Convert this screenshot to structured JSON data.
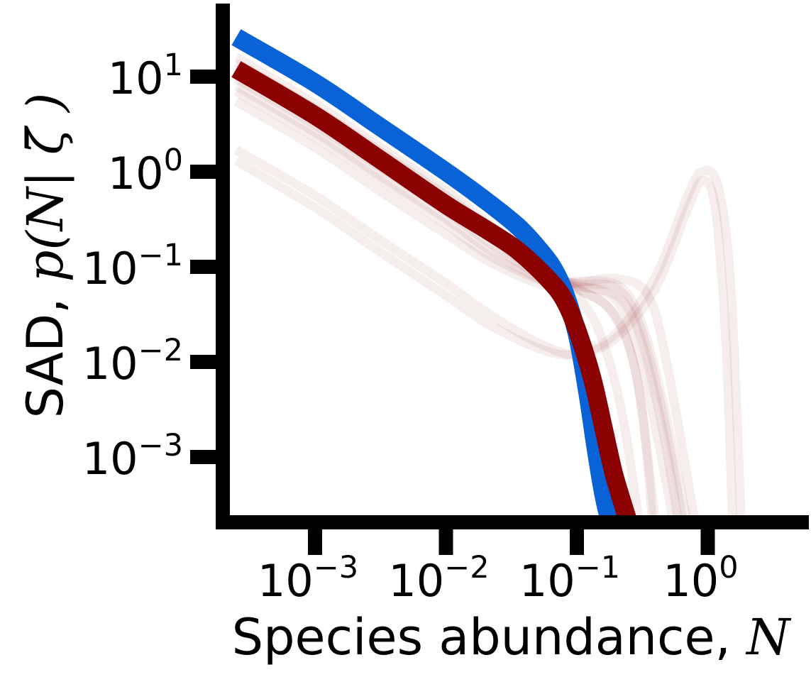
{
  "chart_data": {
    "type": "line",
    "xscale": "log",
    "yscale": "log",
    "xlim": [
      0.00025,
      6
    ],
    "ylim": [
      0.0002,
      50
    ],
    "xlabel": {
      "text": "Species abundance, ",
      "symbol": "N"
    },
    "ylabel": {
      "text": "SAD, ",
      "symbol": "p(N| ζ̄ )"
    },
    "x_ticks": [
      {
        "value": 0.001,
        "base": "10",
        "exp": "−3"
      },
      {
        "value": 0.01,
        "base": "10",
        "exp": "−2"
      },
      {
        "value": 0.1,
        "base": "10",
        "exp": "−1"
      },
      {
        "value": 1,
        "base": "10",
        "exp": "0"
      }
    ],
    "y_ticks": [
      {
        "value": 10,
        "base": "10",
        "exp": "1"
      },
      {
        "value": 1,
        "base": "10",
        "exp": "0"
      },
      {
        "value": 0.1,
        "base": "10",
        "exp": "−1"
      },
      {
        "value": 0.01,
        "base": "10",
        "exp": "−2"
      },
      {
        "value": 0.001,
        "base": "10",
        "exp": "−3"
      }
    ],
    "grid": false,
    "legend": "none",
    "series": [
      {
        "role": "background",
        "color": "#8b1a1a",
        "opacity": 0.08,
        "x": [
          0.00025,
          0.001,
          0.003,
          0.01,
          0.02,
          0.05,
          0.1,
          0.2,
          0.4,
          0.7,
          0.9,
          1.1,
          1.25,
          1.4,
          1.55
        ],
        "y": [
          1.7,
          0.56,
          0.2,
          0.067,
          0.034,
          0.016,
          0.012,
          0.018,
          0.06,
          0.4,
          0.8,
          0.55,
          0.12,
          0.01,
          0.0002
        ]
      },
      {
        "role": "background",
        "color": "#8b1a1a",
        "opacity": 0.08,
        "x": [
          0.00025,
          0.001,
          0.003,
          0.01,
          0.02,
          0.05,
          0.1,
          0.2,
          0.4,
          0.7,
          0.9,
          1.2,
          1.5,
          1.8
        ],
        "y": [
          1.3,
          0.42,
          0.15,
          0.05,
          0.026,
          0.014,
          0.012,
          0.02,
          0.08,
          0.55,
          1.0,
          0.7,
          0.06,
          0.0002
        ]
      },
      {
        "role": "background",
        "color": "#8b1a1a",
        "opacity": 0.08,
        "x": [
          0.00025,
          0.001,
          0.003,
          0.01,
          0.02,
          0.04,
          0.06,
          0.1,
          0.2,
          0.3,
          0.45,
          0.6
        ],
        "y": [
          8.0,
          2.6,
          0.95,
          0.32,
          0.16,
          0.09,
          0.07,
          0.062,
          0.05,
          0.02,
          0.002,
          0.0002
        ]
      },
      {
        "role": "background",
        "color": "#8b1a1a",
        "opacity": 0.08,
        "x": [
          0.00025,
          0.001,
          0.003,
          0.01,
          0.02,
          0.04,
          0.06,
          0.1,
          0.2,
          0.3,
          0.45,
          0.7
        ],
        "y": [
          5.5,
          1.8,
          0.65,
          0.22,
          0.12,
          0.075,
          0.065,
          0.07,
          0.065,
          0.03,
          0.004,
          0.0002
        ]
      },
      {
        "role": "background",
        "color": "#8b1a1a",
        "opacity": 0.08,
        "x": [
          0.00025,
          0.001,
          0.003,
          0.01,
          0.02,
          0.04,
          0.06,
          0.1,
          0.2,
          0.3,
          0.4,
          0.55
        ],
        "y": [
          11.0,
          3.6,
          1.3,
          0.44,
          0.22,
          0.11,
          0.08,
          0.065,
          0.045,
          0.012,
          0.002,
          0.0002
        ]
      },
      {
        "role": "background",
        "color": "#8b1a1a",
        "opacity": 0.08,
        "x": [
          0.00025,
          0.001,
          0.003,
          0.01,
          0.02,
          0.04,
          0.06,
          0.1,
          0.2,
          0.3,
          0.38
        ],
        "y": [
          14.0,
          4.6,
          1.7,
          0.56,
          0.27,
          0.13,
          0.085,
          0.06,
          0.03,
          0.005,
          0.0002
        ]
      },
      {
        "role": "background",
        "color": "#8b1a1a",
        "opacity": 0.08,
        "x": [
          0.00025,
          0.001,
          0.003,
          0.01,
          0.02,
          0.04,
          0.06,
          0.1,
          0.15,
          0.22,
          0.3
        ],
        "y": [
          16.0,
          5.2,
          1.9,
          0.63,
          0.3,
          0.14,
          0.085,
          0.05,
          0.02,
          0.003,
          0.0002
        ]
      },
      {
        "role": "background",
        "color": "#8b1a1a",
        "opacity": 0.08,
        "x": [
          0.00025,
          0.001,
          0.003,
          0.01,
          0.02,
          0.04,
          0.06,
          0.1,
          0.2,
          0.35,
          0.5,
          0.8
        ],
        "y": [
          7.0,
          2.3,
          0.85,
          0.28,
          0.14,
          0.085,
          0.07,
          0.068,
          0.075,
          0.05,
          0.008,
          0.0002
        ]
      },
      {
        "role": "background",
        "color": "#8b1a1a",
        "opacity": 0.08,
        "x": [
          0.00025,
          0.001,
          0.003,
          0.01,
          0.02,
          0.04,
          0.06,
          0.1,
          0.18,
          0.28,
          0.4
        ],
        "y": [
          12.5,
          4.1,
          1.5,
          0.5,
          0.25,
          0.12,
          0.082,
          0.058,
          0.035,
          0.008,
          0.0002
        ]
      },
      {
        "role": "background",
        "color": "#8b1a1a",
        "opacity": 0.08,
        "x": [
          0.00025,
          0.001,
          0.003,
          0.01,
          0.02,
          0.04,
          0.06,
          0.1,
          0.2,
          0.3,
          0.45,
          0.65
        ],
        "y": [
          9.5,
          3.1,
          1.15,
          0.38,
          0.19,
          0.1,
          0.075,
          0.066,
          0.06,
          0.025,
          0.003,
          0.0002
        ]
      },
      {
        "role": "blue",
        "color": "#0a63d6",
        "opacity": 1,
        "width": 26,
        "x": [
          0.00025,
          0.001,
          0.003,
          0.01,
          0.02,
          0.035,
          0.05,
          0.065,
          0.08,
          0.1,
          0.12,
          0.14,
          0.16,
          0.18
        ],
        "y": [
          26.0,
          8.6,
          3.1,
          1.0,
          0.5,
          0.27,
          0.16,
          0.1,
          0.055,
          0.02,
          0.005,
          0.0012,
          0.0004,
          0.0002
        ]
      },
      {
        "role": "red",
        "color": "#8b0000",
        "opacity": 1,
        "width": 26,
        "x": [
          0.00025,
          0.001,
          0.003,
          0.01,
          0.02,
          0.035,
          0.06,
          0.08,
          0.1,
          0.13,
          0.16,
          0.19,
          0.22,
          0.25
        ],
        "y": [
          12.0,
          3.9,
          1.4,
          0.45,
          0.25,
          0.15,
          0.075,
          0.045,
          0.022,
          0.007,
          0.002,
          0.0007,
          0.00035,
          0.0002
        ]
      }
    ]
  }
}
